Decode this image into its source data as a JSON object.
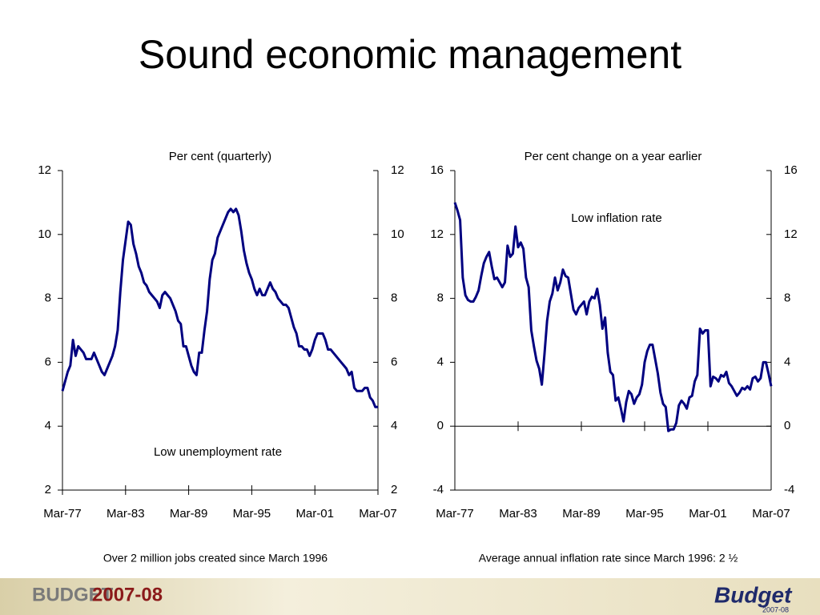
{
  "title": "Sound economic management",
  "chart_data": [
    {
      "type": "line",
      "ylabel": "Per cent (quarterly)",
      "annotation": "Low unemployment rate",
      "caption": "Over 2 million jobs created since March 1996",
      "color": "#000080",
      "categories": [
        "Mar-77",
        null,
        null,
        null,
        null,
        null,
        null,
        null,
        null,
        null,
        null,
        null,
        null,
        null,
        null,
        null,
        null,
        null,
        null,
        null,
        null,
        null,
        null,
        null,
        "Mar-83",
        null,
        null,
        null,
        null,
        null,
        null,
        null,
        null,
        null,
        null,
        null,
        null,
        null,
        null,
        null,
        null,
        null,
        null,
        null,
        null,
        null,
        null,
        null,
        "Mar-89",
        null,
        null,
        null,
        null,
        null,
        null,
        null,
        null,
        null,
        null,
        null,
        null,
        null,
        null,
        null,
        null,
        null,
        null,
        null,
        null,
        null,
        null,
        null,
        "Mar-95",
        null,
        null,
        null,
        null,
        null,
        null,
        null,
        null,
        null,
        null,
        null,
        null,
        null,
        null,
        null,
        null,
        null,
        null,
        null,
        null,
        null,
        null,
        null,
        "Mar-01",
        null,
        null,
        null,
        null,
        null,
        null,
        null,
        null,
        null,
        null,
        null,
        null,
        null,
        null,
        null,
        null,
        null,
        null,
        null,
        null,
        null,
        null,
        null,
        "Mar-07"
      ],
      "values": [
        5.1,
        5.4,
        5.7,
        5.9,
        6.7,
        6.2,
        6.5,
        6.4,
        6.3,
        6.1,
        6.1,
        6.1,
        6.3,
        6.1,
        5.9,
        5.7,
        5.6,
        5.8,
        6.0,
        6.2,
        6.5,
        7.0,
        8.2,
        9.2,
        9.8,
        10.4,
        10.3,
        9.7,
        9.4,
        9.0,
        8.8,
        8.5,
        8.4,
        8.2,
        8.1,
        8.0,
        7.9,
        7.7,
        8.1,
        8.2,
        8.1,
        8.0,
        7.8,
        7.6,
        7.3,
        7.2,
        6.5,
        6.5,
        6.2,
        5.9,
        5.7,
        5.6,
        6.3,
        6.3,
        7.0,
        7.6,
        8.6,
        9.2,
        9.4,
        9.9,
        10.1,
        10.3,
        10.5,
        10.7,
        10.8,
        10.7,
        10.8,
        10.6,
        10.1,
        9.5,
        9.1,
        8.8,
        8.6,
        8.3,
        8.1,
        8.3,
        8.1,
        8.1,
        8.3,
        8.5,
        8.3,
        8.2,
        8.0,
        7.9,
        7.8,
        7.8,
        7.7,
        7.4,
        7.1,
        6.9,
        6.5,
        6.5,
        6.4,
        6.4,
        6.2,
        6.4,
        6.7,
        6.9,
        6.9,
        6.9,
        6.7,
        6.4,
        6.4,
        6.3,
        6.2,
        6.1,
        6.0,
        5.9,
        5.8,
        5.6,
        5.7,
        5.2,
        5.1,
        5.1,
        5.1,
        5.2,
        5.2,
        4.9,
        4.8,
        4.6,
        4.6
      ],
      "ylim": [
        2,
        12
      ],
      "yticks": [
        2,
        4,
        6,
        8,
        10,
        12
      ],
      "y2lim": [
        2,
        12
      ],
      "y2ticks": [
        2,
        4,
        6,
        8,
        10,
        12
      ],
      "zero_line": false
    },
    {
      "type": "line",
      "ylabel": "Per cent change on a year earlier",
      "annotation": "Low inflation rate",
      "caption": "Average annual inflation rate since March 1996: 2 ½",
      "color": "#000080",
      "categories": [
        "Mar-77",
        null,
        null,
        null,
        null,
        null,
        null,
        null,
        null,
        null,
        null,
        null,
        null,
        null,
        null,
        null,
        null,
        null,
        null,
        null,
        null,
        null,
        null,
        null,
        "Mar-83",
        null,
        null,
        null,
        null,
        null,
        null,
        null,
        null,
        null,
        null,
        null,
        null,
        null,
        null,
        null,
        null,
        null,
        null,
        null,
        null,
        null,
        null,
        null,
        "Mar-89",
        null,
        null,
        null,
        null,
        null,
        null,
        null,
        null,
        null,
        null,
        null,
        null,
        null,
        null,
        null,
        null,
        null,
        null,
        null,
        null,
        null,
        null,
        null,
        "Mar-95",
        null,
        null,
        null,
        null,
        null,
        null,
        null,
        null,
        null,
        null,
        null,
        null,
        null,
        null,
        null,
        null,
        null,
        null,
        null,
        null,
        null,
        null,
        null,
        "Mar-01",
        null,
        null,
        null,
        null,
        null,
        null,
        null,
        null,
        null,
        null,
        null,
        null,
        null,
        null,
        null,
        null,
        null,
        null,
        null,
        null,
        null,
        null,
        null,
        "Mar-07"
      ],
      "values": [
        14.0,
        13.5,
        12.9,
        9.3,
        8.2,
        7.9,
        7.8,
        7.8,
        8.1,
        8.5,
        9.4,
        10.2,
        10.6,
        10.9,
        10.0,
        9.2,
        9.3,
        9.0,
        8.7,
        9.0,
        11.3,
        10.6,
        10.8,
        12.5,
        11.2,
        11.5,
        11.1,
        9.3,
        8.7,
        6.0,
        5.0,
        4.1,
        3.6,
        2.6,
        4.5,
        6.6,
        7.8,
        8.3,
        9.3,
        8.5,
        9.0,
        9.8,
        9.4,
        9.3,
        8.3,
        7.3,
        7.0,
        7.4,
        7.6,
        7.8,
        7.0,
        7.8,
        8.1,
        8.0,
        8.6,
        7.6,
        6.1,
        6.8,
        4.6,
        3.4,
        3.2,
        1.6,
        1.8,
        1.1,
        0.3,
        1.5,
        2.2,
        2.0,
        1.4,
        1.8,
        2.0,
        2.6,
        4.0,
        4.7,
        5.1,
        5.1,
        4.2,
        3.3,
        2.1,
        1.4,
        1.2,
        -0.3,
        -0.2,
        -0.2,
        0.2,
        1.3,
        1.6,
        1.4,
        1.1,
        1.8,
        1.9,
        2.8,
        3.2,
        6.1,
        5.8,
        6.0,
        6.0,
        2.5,
        3.1,
        3.0,
        2.8,
        3.2,
        3.1,
        3.4,
        2.7,
        2.5,
        2.2,
        1.9,
        2.1,
        2.4,
        2.3,
        2.5,
        2.3,
        3.0,
        3.1,
        2.8,
        3.0,
        4.0,
        4.0,
        3.3,
        2.5
      ],
      "ylim": [
        -4,
        16
      ],
      "yticks": [
        -4,
        0,
        4,
        8,
        12,
        16
      ],
      "y2lim": [
        -4,
        16
      ],
      "y2ticks": [
        -4,
        0,
        4,
        8,
        12,
        16
      ],
      "zero_line": true
    }
  ],
  "footer": {
    "left_logo": "BUDGET",
    "left_year": "2007-08",
    "right_logo": "Budget",
    "right_year": "2007-08"
  }
}
